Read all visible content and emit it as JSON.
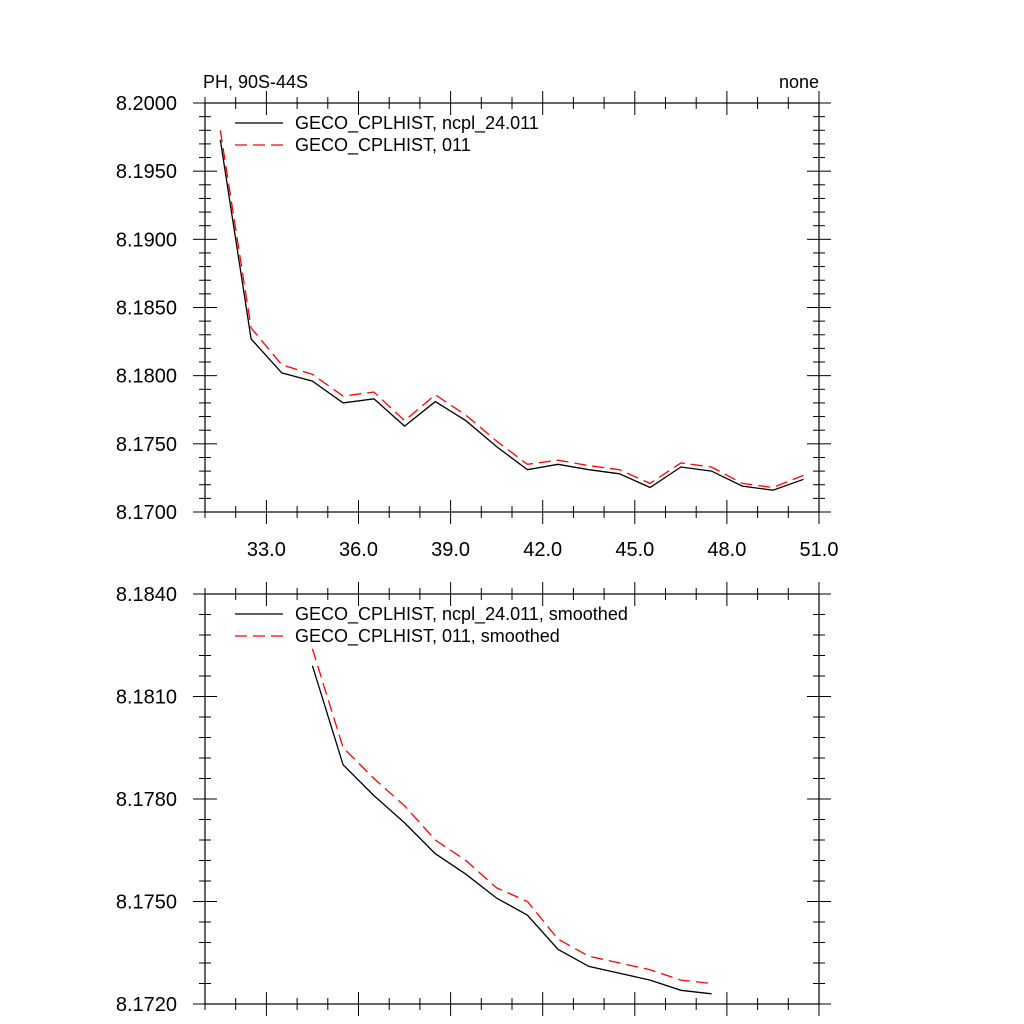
{
  "chart_data": [
    {
      "type": "line",
      "title": "PH, 90S-44S",
      "title_right": "none",
      "xlabel": "",
      "ylabel": "",
      "xlim": [
        31.0,
        51.0
      ],
      "ylim": [
        8.17,
        8.2
      ],
      "x_ticks": [
        33.0,
        36.0,
        39.0,
        42.0,
        45.0,
        48.0,
        51.0
      ],
      "x_tick_labels": [
        "33.0",
        "36.0",
        "39.0",
        "42.0",
        "45.0",
        "48.0",
        "51.0"
      ],
      "y_ticks": [
        8.17,
        8.175,
        8.18,
        8.185,
        8.19,
        8.195,
        8.2
      ],
      "y_tick_labels": [
        "8.1700",
        "8.1750",
        "8.1800",
        "8.1850",
        "8.1900",
        "8.1950",
        "8.2000"
      ],
      "grid": false,
      "legend_position": "top-left",
      "x": [
        31.5,
        32.5,
        33.5,
        34.5,
        35.5,
        36.5,
        37.5,
        38.5,
        39.5,
        40.5,
        41.5,
        42.5,
        43.5,
        44.5,
        45.5,
        46.5,
        47.5,
        48.5,
        49.5,
        50.5
      ],
      "series": [
        {
          "name": "GECO_CPLHIST, ncpl_24.011",
          "color": "#000000",
          "dash": "solid",
          "values": [
            8.1973,
            8.1827,
            8.1802,
            8.1796,
            8.178,
            8.1783,
            8.1763,
            8.1781,
            8.1767,
            8.1748,
            8.1731,
            8.1735,
            8.1731,
            8.1728,
            8.1718,
            8.1733,
            8.173,
            8.1719,
            8.1716,
            8.1724
          ]
        },
        {
          "name": "GECO_CPLHIST, 011",
          "color": "#ff0000",
          "dash": "dashed",
          "values": [
            8.198,
            8.1835,
            8.1808,
            8.1801,
            8.1785,
            8.1788,
            8.1767,
            8.1786,
            8.1771,
            8.1752,
            8.1735,
            8.1738,
            8.1734,
            8.1731,
            8.1721,
            8.1736,
            8.1733,
            8.1721,
            8.1718,
            8.1727
          ]
        }
      ]
    },
    {
      "type": "line",
      "title": "",
      "xlabel": "",
      "ylabel": "",
      "xlim": [
        31.0,
        51.0
      ],
      "ylim": [
        8.172,
        8.184
      ],
      "x_ticks": [
        33.0,
        36.0,
        39.0,
        42.0,
        45.0,
        48.0,
        51.0
      ],
      "y_ticks": [
        8.172,
        8.175,
        8.178,
        8.181,
        8.184
      ],
      "y_tick_labels": [
        "8.1720",
        "8.1750",
        "8.1780",
        "8.1810",
        "8.1840"
      ],
      "grid": false,
      "legend_position": "top-left",
      "x": [
        34.5,
        35.5,
        36.5,
        37.5,
        38.5,
        39.5,
        40.5,
        41.5,
        42.5,
        43.5,
        44.5,
        45.5,
        46.5,
        47.5
      ],
      "series": [
        {
          "name": "GECO_CPLHIST, ncpl_24.011, smoothed",
          "color": "#000000",
          "dash": "solid",
          "values": [
            8.1819,
            8.179,
            8.1781,
            8.1773,
            8.1764,
            8.1758,
            8.1751,
            8.1746,
            8.1736,
            8.1731,
            8.1729,
            8.1727,
            8.1724,
            8.1723
          ]
        },
        {
          "name": "GECO_CPLHIST, 011, smoothed",
          "color": "#ff0000",
          "dash": "dashed",
          "values": [
            8.1824,
            8.1795,
            8.1786,
            8.1778,
            8.1768,
            8.1762,
            8.1754,
            8.175,
            8.1739,
            8.1734,
            8.1732,
            8.173,
            8.1727,
            8.1726
          ]
        }
      ]
    }
  ]
}
